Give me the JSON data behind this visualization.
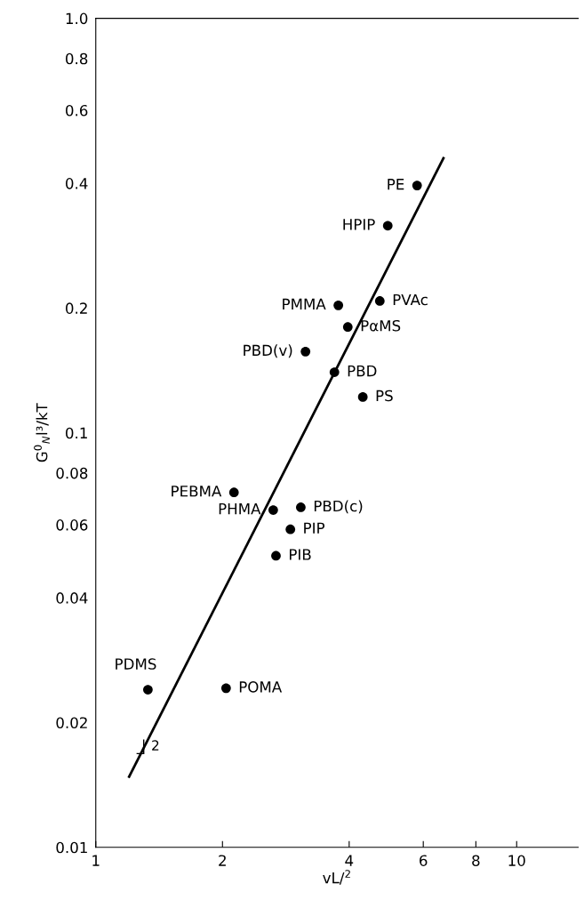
{
  "chart_data": {
    "type": "scatter",
    "xlabel": "vL/$^{2}$",
    "ylabel": "G$^{0}$$_{N}$l³/kT",
    "series": [
      {
        "color": "#000000",
        "marker": "circle",
        "x": [
          5.8,
          4.94,
          3.77,
          4.73,
          3.97,
          3.15,
          3.69,
          4.31,
          2.13,
          2.64,
          3.07,
          2.9,
          2.68,
          1.33,
          2.04
        ],
        "values": [
          0.395,
          0.316,
          0.203,
          0.208,
          0.18,
          0.157,
          0.14,
          0.122,
          0.0718,
          0.0651,
          0.0661,
          0.0585,
          0.0505,
          0.024,
          0.0242
        ]
      },
      {
        "type": "line",
        "color": "#000000",
        "marker": "none",
        "line_style": "solid",
        "x": [
          1.2,
          6.7
        ],
        "values": [
          0.0148,
          0.46
        ]
      }
    ],
    "annotations": [
      {
        "text": "PE",
        "x": 5.8,
        "y": 0.395
      },
      {
        "text": "HPIP",
        "x": 4.94,
        "y": 0.316
      },
      {
        "text": "PMMA",
        "x": 3.77,
        "y": 0.203
      },
      {
        "text": "PVAc",
        "x": 4.73,
        "y": 0.208
      },
      {
        "text": "PαMS",
        "x": 3.97,
        "y": 0.18
      },
      {
        "text": "PBD(v)",
        "x": 3.15,
        "y": 0.157
      },
      {
        "text": "PBD",
        "x": 3.69,
        "y": 0.14
      },
      {
        "text": "PS",
        "x": 4.31,
        "y": 0.122
      },
      {
        "text": "PEBMA",
        "x": 2.13,
        "y": 0.0718
      },
      {
        "text": "PHMA",
        "x": 2.64,
        "y": 0.0651
      },
      {
        "text": "PBD(c)",
        "x": 3.07,
        "y": 0.0661
      },
      {
        "text": "PIP",
        "x": 2.9,
        "y": 0.0585
      },
      {
        "text": "PIB",
        "x": 2.68,
        "y": 0.0505
      },
      {
        "text": "PDMS",
        "x": 1.33,
        "y": 0.024
      },
      {
        "text": "POMA",
        "x": 2.04,
        "y": 0.0242
      },
      {
        "text": "2",
        "x": 1.3,
        "y": 0.0175
      }
    ],
    "log": "xy",
    "grid": false,
    "legend": false,
    "xlim": [
      1,
      14
    ],
    "xticks": [
      1,
      2,
      4,
      6,
      8,
      10
    ],
    "ylim": [
      0.01,
      1.0
    ],
    "yticks": [
      0.01,
      0.02,
      0.04,
      0.06,
      0.08,
      0.1,
      0.2,
      0.4,
      0.6,
      0.8,
      {
        "value": 1.0,
        "label": "1.0"
      }
    ]
  }
}
